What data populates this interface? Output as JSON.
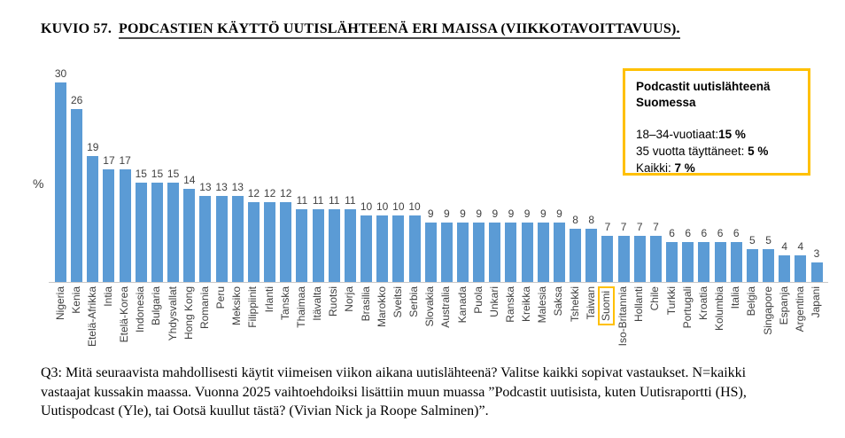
{
  "figure": {
    "label": "KUVIO 57.",
    "title": "PODCASTIEN KÄYTTÖ UUTISLÄHTEENÄ ERI MAISSA (VIIKKOTAVOITTAVUUS)."
  },
  "chart_data": {
    "type": "bar",
    "title": "PODCASTIEN KÄYTTÖ UUTISLÄHTEENÄ ERI MAISSA (VIIKKOTAVOITTAVUUS).",
    "xlabel": "",
    "ylabel": "%",
    "ylim": [
      0,
      32
    ],
    "grid": false,
    "legend_position": "none",
    "data_labels": "above-bars",
    "bar_color": "#5B9BD5",
    "text_color": "#404040",
    "highlighted_category": "Suomi",
    "highlight_color": "#FFC000",
    "categories": [
      "Nigeria",
      "Kenia",
      "Etelä-Afrikka",
      "Intia",
      "Etelä-Korea",
      "Indonesia",
      "Bulgaria",
      "Yhdysvallat",
      "Hong Kong",
      "Romania",
      "Peru",
      "Meksiko",
      "Filippiinit",
      "Irlanti",
      "Tanska",
      "Thaimaa",
      "Itävalta",
      "Ruotsi",
      "Norja",
      "Brasilia",
      "Marokko",
      "Sveitsi",
      "Serbia",
      "Slovakia",
      "Australia",
      "Kanada",
      "Puola",
      "Unkari",
      "Ranska",
      "Kreikka",
      "Malesia",
      "Saksa",
      "Tshekki",
      "Taiwan",
      "Suomi",
      "Iso-Britannia",
      "Hollanti",
      "Chile",
      "Turkki",
      "Portugali",
      "Kroatia",
      "Kolumbia",
      "Italia",
      "Belgia",
      "Singapore",
      "Espanja",
      "Argentina",
      "Japani"
    ],
    "values": [
      30,
      26,
      19,
      17,
      17,
      15,
      15,
      15,
      14,
      13,
      13,
      13,
      12,
      12,
      12,
      11,
      11,
      11,
      11,
      10,
      10,
      10,
      10,
      9,
      9,
      9,
      9,
      9,
      9,
      9,
      9,
      9,
      8,
      8,
      7,
      7,
      7,
      7,
      6,
      6,
      6,
      6,
      6,
      5,
      5,
      4,
      4,
      3
    ]
  },
  "callout": {
    "title_line1": "Podcastit uutislähteenä",
    "title_line2": "Suomessa",
    "rows": [
      {
        "label": "18–34-vuotiaat:",
        "value": "15 %"
      },
      {
        "label": "35 vuotta täyttäneet: ",
        "value": "5 %"
      },
      {
        "label": "Kaikki: ",
        "value": "7 %"
      }
    ],
    "border_color": "#FFC000"
  },
  "footnote": {
    "lines": [
      "Q3: Mitä seuraavista mahdollisesti käytit viimeisen viikon aikana uutislähteenä? Valitse kaikki sopivat vastaukset. N=kaikki",
      "vastaajat kussakin maassa. Vuonna 2025 vaihtoehdoiksi lisättiin muun muassa ”Podcastit uutisista, kuten Uutisraportti (HS),",
      "Uutispodcast (Yle), tai Ootsä kuullut tästä? (Vivian Nick ja Roope Salminen)”."
    ]
  }
}
